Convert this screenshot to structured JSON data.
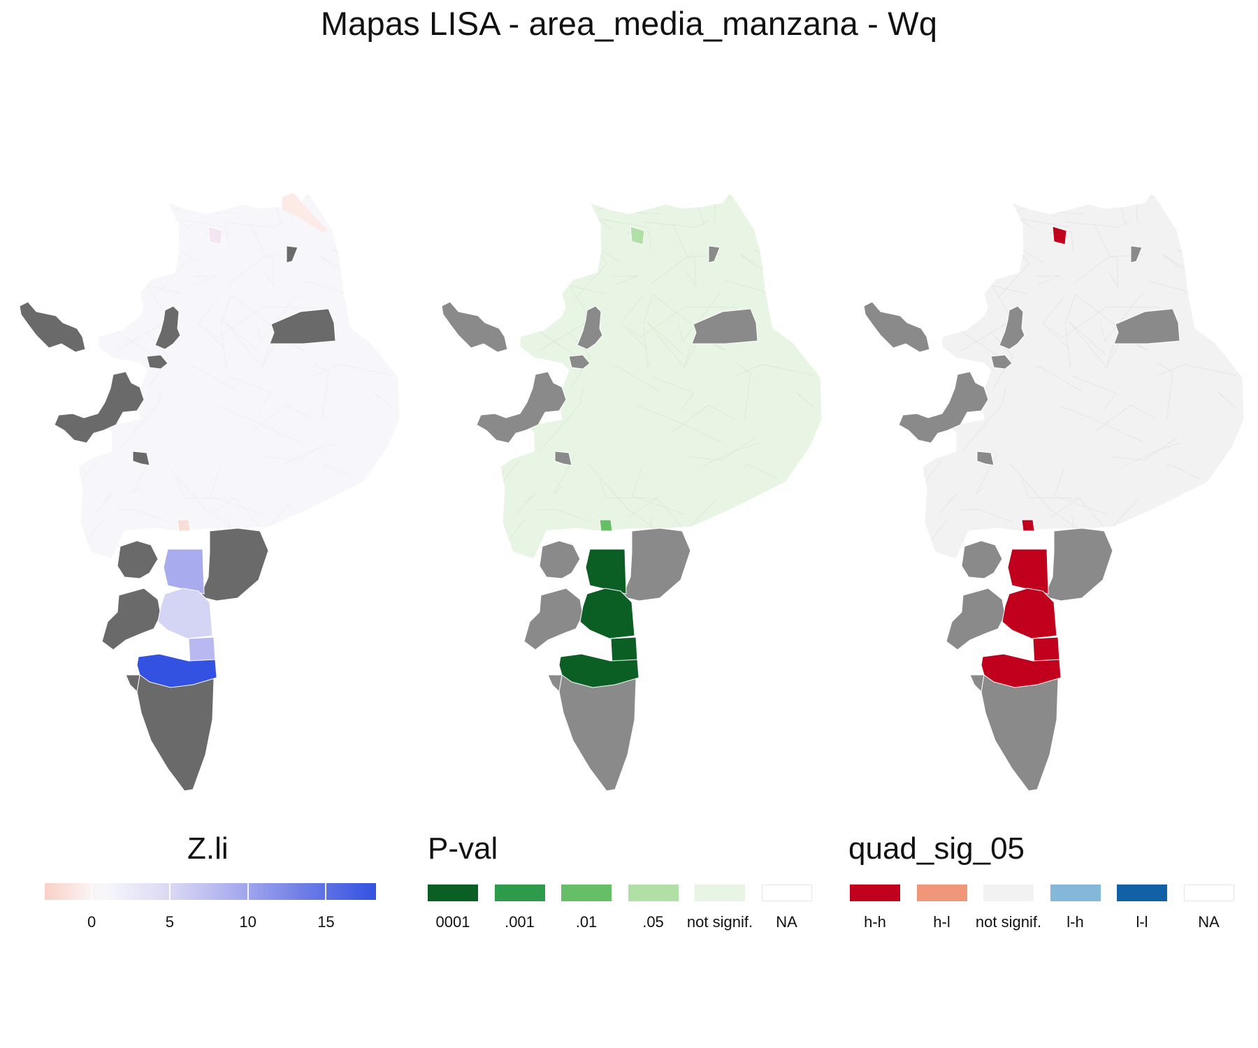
{
  "title": "Mapas LISA - area_media_manzana - Wq",
  "colors": {
    "na_gray": "#6a6a6a",
    "na_gray_light": "#8a8a8a",
    "zli_low": "#f9d5cc",
    "zli_mid": "#f7f7fb",
    "zli_high": "#3452e1",
    "p_0001": "#0b5e24",
    "p_001": "#2d9b4a",
    "p_01": "#66bf66",
    "p_05": "#b0e0a6",
    "p_notsig": "#e8f5e4",
    "q_hh": "#c0001d",
    "q_hl": "#f0977a",
    "q_notsig": "#f2f2f2",
    "q_lh": "#84b8d8",
    "q_ll": "#1261a6"
  },
  "maps": [
    {
      "name": "Z.li",
      "panel": "zli"
    },
    {
      "name": "P-val",
      "panel": "pval"
    },
    {
      "name": "quad_sig_05",
      "panel": "quad"
    }
  ],
  "legend_zli": {
    "title": "Z.li",
    "ticks": [
      "0",
      "5",
      "10",
      "15"
    ],
    "tick_values": [
      0,
      5,
      10,
      15
    ],
    "range": [
      -3,
      18.2
    ]
  },
  "legend_pval": {
    "title": "P-val",
    "items": [
      {
        "label": "0001",
        "color": "#0b5e24"
      },
      {
        "label": ".001",
        "color": "#2d9b4a"
      },
      {
        "label": ".01",
        "color": "#66bf66"
      },
      {
        "label": ".05",
        "color": "#b0e0a6"
      },
      {
        "label": "not signif.",
        "color": "#e8f5e4"
      },
      {
        "label": "NA",
        "color": "#ffffff"
      }
    ]
  },
  "legend_quad": {
    "title": "quad_sig_05",
    "items": [
      {
        "label": "h-h",
        "color": "#c0001d"
      },
      {
        "label": "h-l",
        "color": "#f0977a"
      },
      {
        "label": "not signif.",
        "color": "#f2f2f2"
      },
      {
        "label": "l-h",
        "color": "#84b8d8"
      },
      {
        "label": "l-l",
        "color": "#1261a6"
      },
      {
        "label": "NA",
        "color": "#ffffff"
      }
    ]
  }
}
